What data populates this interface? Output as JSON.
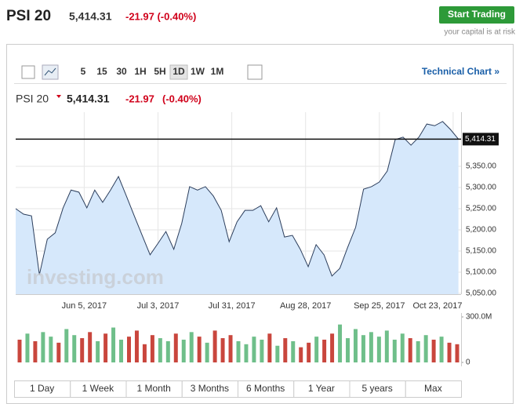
{
  "header": {
    "title": "PSI 20",
    "price": "5,414.31",
    "change": "-21.97 (-0.40%)"
  },
  "cta": {
    "button": "Start Trading",
    "note": "your capital is at risk"
  },
  "toolbar": {
    "intervals": [
      "5",
      "15",
      "30",
      "1H",
      "5H",
      "1D",
      "1W",
      "1M"
    ],
    "link": "Technical Chart »"
  },
  "chart_header": {
    "name": "PSI 20",
    "price": "5,414.31",
    "change": "-21.97",
    "percent": "(-0.40%)"
  },
  "watermark": "investing.com",
  "chart_data": [
    {
      "type": "area",
      "color": "#2c3e5c",
      "fill": "#d6e8fb",
      "x": [
        "2017-05-10",
        "2017-05-13",
        "2017-05-16",
        "2017-05-19",
        "2017-05-22",
        "2017-05-25",
        "2017-05-28",
        "2017-05-31",
        "2017-06-03",
        "2017-06-06",
        "2017-06-09",
        "2017-06-12",
        "2017-06-15",
        "2017-06-18",
        "2017-06-21",
        "2017-06-24",
        "2017-06-27",
        "2017-06-30",
        "2017-07-03",
        "2017-07-06",
        "2017-07-09",
        "2017-07-12",
        "2017-07-15",
        "2017-07-18",
        "2017-07-21",
        "2017-07-24",
        "2017-07-27",
        "2017-07-30",
        "2017-08-02",
        "2017-08-05",
        "2017-08-08",
        "2017-08-11",
        "2017-08-14",
        "2017-08-17",
        "2017-08-20",
        "2017-08-23",
        "2017-08-26",
        "2017-08-29",
        "2017-09-01",
        "2017-09-04",
        "2017-09-07",
        "2017-09-10",
        "2017-09-13",
        "2017-09-16",
        "2017-09-19",
        "2017-09-22",
        "2017-09-25",
        "2017-09-28",
        "2017-10-01",
        "2017-10-04",
        "2017-10-07",
        "2017-10-10",
        "2017-10-13",
        "2017-10-16",
        "2017-10-19",
        "2017-10-22",
        "2017-10-25"
      ],
      "values": [
        5250,
        5237,
        5233,
        5094,
        5178,
        5193,
        5252,
        5294,
        5289,
        5252,
        5294,
        5265,
        5294,
        5326,
        5280,
        5233,
        5187,
        5141,
        5168,
        5196,
        5154,
        5215,
        5302,
        5294,
        5302,
        5280,
        5246,
        5172,
        5219,
        5246,
        5246,
        5257,
        5219,
        5252,
        5183,
        5187,
        5154,
        5113,
        5165,
        5141,
        5091,
        5109,
        5159,
        5206,
        5296,
        5302,
        5313,
        5339,
        5413,
        5419,
        5400,
        5419,
        5450,
        5446,
        5456,
        5437,
        5414.31
      ],
      "xlim": [
        "2017-05-10",
        "2017-10-26"
      ],
      "xticks": [
        {
          "value": "2017-06-05",
          "label": "Jun 5, 2017"
        },
        {
          "value": "2017-07-03",
          "label": "Jul 3, 2017"
        },
        {
          "value": "2017-07-31",
          "label": "Jul 31, 2017"
        },
        {
          "value": "2017-08-28",
          "label": "Aug 28, 2017"
        },
        {
          "value": "2017-09-25",
          "label": "Sep 25, 2017"
        },
        {
          "value": "2017-10-23",
          "label": "Oct 23, 2017"
        }
      ],
      "ylim": [
        5048,
        5478
      ],
      "yticks": [
        {
          "value": 5050,
          "label": "5,050.00"
        },
        {
          "value": 5100,
          "label": "5,100.00"
        },
        {
          "value": 5150,
          "label": "5,150.00"
        },
        {
          "value": 5200,
          "label": "5,200.00"
        },
        {
          "value": 5250,
          "label": "5,250.00"
        },
        {
          "value": 5300,
          "label": "5,300.00"
        },
        {
          "value": 5350,
          "label": "5,350.00"
        }
      ],
      "last": {
        "value": 5414.31,
        "label": "5,414.31"
      },
      "grid": true
    },
    {
      "type": "bar",
      "values": [
        150000000,
        190000000,
        140000000,
        200000000,
        170000000,
        130000000,
        220000000,
        180000000,
        160000000,
        200000000,
        140000000,
        190000000,
        230000000,
        150000000,
        170000000,
        210000000,
        120000000,
        180000000,
        160000000,
        140000000,
        190000000,
        150000000,
        200000000,
        170000000,
        130000000,
        210000000,
        160000000,
        180000000,
        140000000,
        120000000,
        170000000,
        150000000,
        190000000,
        110000000,
        160000000,
        140000000,
        100000000,
        130000000,
        170000000,
        150000000,
        190000000,
        250000000,
        160000000,
        220000000,
        180000000,
        200000000,
        170000000,
        210000000,
        150000000,
        190000000,
        160000000,
        140000000,
        180000000,
        150000000,
        170000000,
        130000000,
        120000000
      ],
      "colors": [
        "#c9463d",
        "#6fbf8a",
        "#c9463d",
        "#6fbf8a",
        "#6fbf8a",
        "#c9463d",
        "#6fbf8a",
        "#6fbf8a",
        "#c9463d",
        "#c9463d",
        "#6fbf8a",
        "#c9463d",
        "#6fbf8a",
        "#6fbf8a",
        "#c9463d",
        "#c9463d",
        "#c9463d",
        "#c9463d",
        "#6fbf8a",
        "#6fbf8a",
        "#c9463d",
        "#6fbf8a",
        "#6fbf8a",
        "#c9463d",
        "#6fbf8a",
        "#c9463d",
        "#c9463d",
        "#c9463d",
        "#6fbf8a",
        "#6fbf8a",
        "#6fbf8a",
        "#6fbf8a",
        "#c9463d",
        "#6fbf8a",
        "#c9463d",
        "#6fbf8a",
        "#c9463d",
        "#c9463d",
        "#6fbf8a",
        "#c9463d",
        "#c9463d",
        "#6fbf8a",
        "#6fbf8a",
        "#6fbf8a",
        "#6fbf8a",
        "#6fbf8a",
        "#6fbf8a",
        "#6fbf8a",
        "#6fbf8a",
        "#6fbf8a",
        "#c9463d",
        "#6fbf8a",
        "#6fbf8a",
        "#c9463d",
        "#6fbf8a",
        "#c9463d",
        "#c9463d"
      ],
      "ylim": [
        0,
        300000000
      ],
      "yticks": [
        0,
        {
          "value": 300000000,
          "label": "300.0M"
        }
      ]
    }
  ],
  "ranges": [
    "1 Day",
    "1 Week",
    "1 Month",
    "3 Months",
    "6 Months",
    "1 Year",
    "5 years",
    "Max"
  ]
}
